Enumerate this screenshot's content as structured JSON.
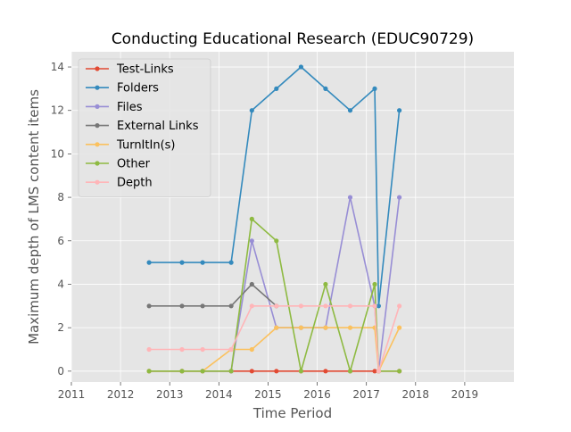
{
  "chart_data": {
    "type": "line",
    "title": "Conducting Educational Research (EDUC90729)",
    "xlabel": "Time Period",
    "ylabel": "Maximum depth of LMS content items",
    "xlim": [
      2011,
      2020
    ],
    "ylim": [
      -0.5,
      14.7
    ],
    "xticks": [
      2011,
      2012,
      2013,
      2014,
      2015,
      2016,
      2017,
      2018,
      2019
    ],
    "yticks": [
      0,
      2,
      4,
      6,
      8,
      10,
      12,
      14
    ],
    "grid": true,
    "legend_position": "top-left",
    "x": [
      2012.58,
      2013.25,
      2013.67,
      2014.25,
      2014.67,
      2015.17,
      2015.67,
      2016.17,
      2016.67,
      2017.17,
      2017.25,
      2017.67
    ],
    "series": [
      {
        "name": "Test-Links",
        "color": "#E24A33",
        "values": [
          0,
          0,
          0,
          0,
          0,
          0,
          0,
          0,
          0,
          0,
          0,
          0
        ]
      },
      {
        "name": "Folders",
        "color": "#348ABD",
        "values": [
          5,
          5,
          5,
          5,
          12,
          13,
          14,
          13,
          12,
          13,
          3,
          12
        ]
      },
      {
        "name": "Files",
        "color": "#988ED5",
        "values": [
          0,
          0,
          0,
          0,
          6,
          2,
          2,
          2,
          8,
          3,
          0,
          8
        ]
      },
      {
        "name": "External Links",
        "color": "#777777",
        "values": [
          3,
          3,
          3,
          3,
          4,
          3,
          null,
          null,
          null,
          null,
          null,
          null
        ]
      },
      {
        "name": "TurnItIn(s)",
        "color": "#FBC15E",
        "values": [
          0,
          0,
          0,
          1,
          1,
          2,
          2,
          2,
          2,
          2,
          0,
          2
        ]
      },
      {
        "name": "Other",
        "color": "#8EBA42",
        "values": [
          0,
          0,
          0,
          0,
          7,
          6,
          0,
          4,
          0,
          4,
          0,
          0
        ]
      },
      {
        "name": "Depth",
        "color": "#FFB5B8",
        "values": [
          1,
          1,
          1,
          1,
          3,
          3,
          3,
          3,
          3,
          3,
          0,
          3
        ]
      }
    ]
  }
}
